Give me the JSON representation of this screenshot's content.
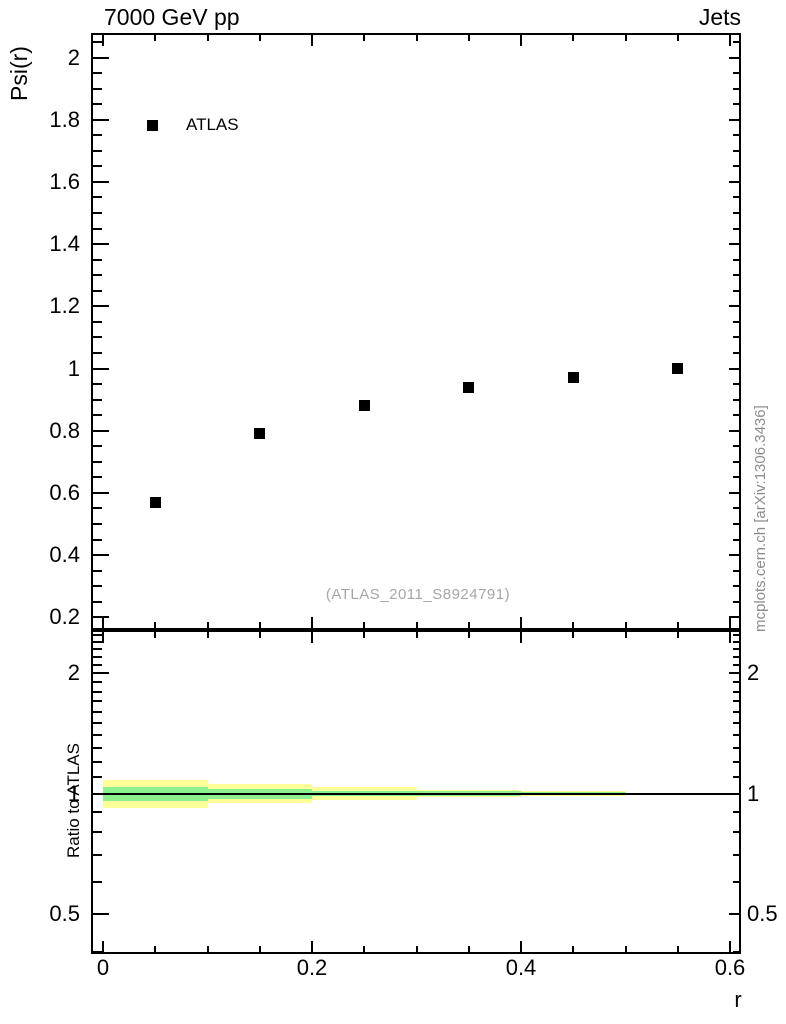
{
  "titles": {
    "left": "7000 GeV pp",
    "right": "Jets"
  },
  "axes": {
    "x_label": "r",
    "x_tick_labels": [
      "0",
      "0.2",
      "0.4",
      "0.6"
    ],
    "main_y_label": "Psi(r)",
    "main_y_tick_labels": [
      "2",
      "1.8",
      "1.6",
      "1.4",
      "1.2",
      "1",
      "0.8",
      "0.6",
      "0.4",
      "0.2"
    ],
    "ratio_y_label": "Ratio to ATLAS",
    "ratio_y_tick_labels": [
      "2",
      "1",
      "0.5"
    ]
  },
  "legend": {
    "label": "ATLAS",
    "marker": "filled-square"
  },
  "watermark": "(ATLAS_2011_S8924791)",
  "side_text": "mcplots.cern.ch [arXiv:1306.3436]",
  "colors": {
    "marker": "#000000",
    "band_outer": "#ffff99",
    "band_inner": "#8cf08c",
    "reference_line": "#000000"
  },
  "chart_data": [
    {
      "type": "scatter",
      "panel": "main",
      "title": "7000 GeV pp",
      "title_right": "Jets",
      "xlabel": "r",
      "ylabel": "Psi(r)",
      "xlim": [
        -0.0115,
        0.611
      ],
      "ylim": [
        0.15,
        2.08
      ],
      "x_major_ticks": [
        0,
        0.2,
        0.4,
        0.6
      ],
      "x_minor_step": 0.05,
      "y_major_ticks": [
        0.2,
        0.4,
        0.6,
        0.8,
        1.0,
        1.2,
        1.4,
        1.6,
        1.8,
        2.0
      ],
      "y_minor_step": 0.05,
      "grid": false,
      "legend_position": "top-left-inside",
      "annotation": "(ATLAS_2011_S8924791)",
      "series": [
        {
          "name": "ATLAS",
          "marker": "filled-square",
          "color": "#000000",
          "x": [
            0.05,
            0.15,
            0.25,
            0.35,
            0.45,
            0.55
          ],
          "y": [
            0.57,
            0.79,
            0.88,
            0.94,
            0.97,
            1.0
          ]
        }
      ]
    },
    {
      "type": "area",
      "panel": "ratio",
      "ylabel": "Ratio to ATLAS",
      "yscale": "log",
      "ylim": [
        0.397,
        2.57
      ],
      "y_major_ticks": [
        0.5,
        1,
        2
      ],
      "y_minor_ticks": [
        0.4,
        0.6,
        0.7,
        0.8,
        0.9,
        1.1,
        1.2,
        1.3,
        1.4,
        1.5,
        1.6,
        1.7,
        1.8,
        1.9,
        2.1,
        2.2,
        2.3,
        2.4,
        2.5
      ],
      "reference_line_y": 1.0,
      "bin_edges": [
        0,
        0.1,
        0.2,
        0.3,
        0.4,
        0.5,
        0.6
      ],
      "band_outer_frac": [
        0.081,
        0.056,
        0.038,
        0.022,
        0.012,
        0.004
      ],
      "band_inner_frac": [
        0.041,
        0.029,
        0.017,
        0.012,
        0.006,
        0.002
      ]
    }
  ]
}
